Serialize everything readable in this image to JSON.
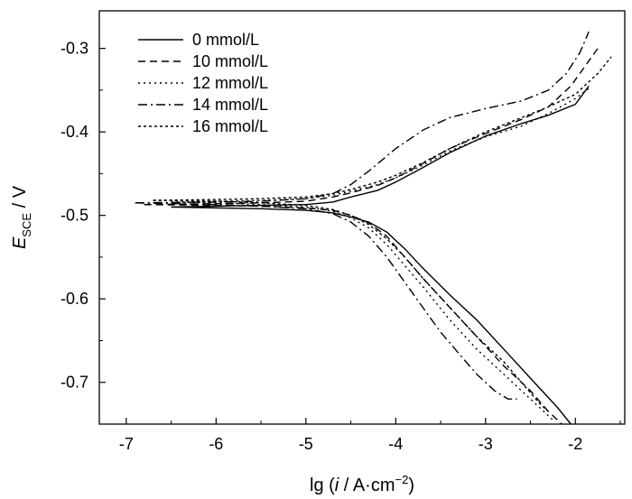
{
  "chart_data": {
    "type": "line",
    "title": "",
    "xlabel": {
      "prefix": "lg (",
      "italic": "i",
      "middle": " / A·cm",
      "sup": "−2",
      "suffix": ")"
    },
    "ylabel": {
      "main": "E",
      "sub": "SCE",
      "suffix": " / V"
    },
    "xlim": [
      -7.3,
      -1.45
    ],
    "ylim": [
      -0.75,
      -0.255
    ],
    "xticks": [
      -7,
      -6,
      -5,
      -4,
      -3,
      -2
    ],
    "xtick_labels": [
      "-7",
      "-6",
      "-5",
      "-4",
      "-3",
      "-2"
    ],
    "yticks": [
      -0.3,
      -0.4,
      -0.5,
      -0.6,
      -0.7
    ],
    "ytick_labels": [
      "-0.3",
      "-0.4",
      "-0.5",
      "-0.6",
      "-0.7"
    ],
    "grid": false,
    "legend_position": "top-left",
    "series": [
      {
        "name": "0 mmol/L",
        "dash": "solid",
        "anodic": [
          [
            -6.5,
            -0.49
          ],
          [
            -6.0,
            -0.489
          ],
          [
            -5.5,
            -0.488
          ],
          [
            -5.0,
            -0.487
          ],
          [
            -4.7,
            -0.484
          ],
          [
            -4.5,
            -0.478
          ],
          [
            -4.2,
            -0.47
          ],
          [
            -4.0,
            -0.46
          ],
          [
            -3.7,
            -0.443
          ],
          [
            -3.4,
            -0.425
          ],
          [
            -3.0,
            -0.405
          ],
          [
            -2.6,
            -0.39
          ],
          [
            -2.3,
            -0.38
          ],
          [
            -2.0,
            -0.367
          ],
          [
            -1.85,
            -0.345
          ]
        ],
        "cathodic": [
          [
            -6.5,
            -0.49
          ],
          [
            -6.0,
            -0.491
          ],
          [
            -5.5,
            -0.492
          ],
          [
            -5.0,
            -0.494
          ],
          [
            -4.7,
            -0.497
          ],
          [
            -4.5,
            -0.502
          ],
          [
            -4.3,
            -0.508
          ],
          [
            -4.1,
            -0.52
          ],
          [
            -3.9,
            -0.54
          ],
          [
            -3.7,
            -0.563
          ],
          [
            -3.4,
            -0.595
          ],
          [
            -3.1,
            -0.625
          ],
          [
            -2.8,
            -0.66
          ],
          [
            -2.5,
            -0.695
          ],
          [
            -2.2,
            -0.73
          ],
          [
            -2.05,
            -0.75
          ]
        ]
      },
      {
        "name": "10 mmol/L",
        "dash": "8,5",
        "anodic": [
          [
            -6.8,
            -0.487
          ],
          [
            -6.0,
            -0.486
          ],
          [
            -5.5,
            -0.485
          ],
          [
            -5.0,
            -0.483
          ],
          [
            -4.7,
            -0.478
          ],
          [
            -4.5,
            -0.473
          ],
          [
            -4.2,
            -0.464
          ],
          [
            -4.0,
            -0.455
          ],
          [
            -3.7,
            -0.438
          ],
          [
            -3.4,
            -0.42
          ],
          [
            -3.0,
            -0.402
          ],
          [
            -2.6,
            -0.385
          ],
          [
            -2.3,
            -0.37
          ],
          [
            -2.05,
            -0.345
          ],
          [
            -1.85,
            -0.315
          ],
          [
            -1.75,
            -0.3
          ]
        ],
        "cathodic": [
          [
            -6.8,
            -0.487
          ],
          [
            -6.0,
            -0.488
          ],
          [
            -5.5,
            -0.489
          ],
          [
            -5.0,
            -0.491
          ],
          [
            -4.7,
            -0.494
          ],
          [
            -4.5,
            -0.5
          ],
          [
            -4.3,
            -0.509
          ],
          [
            -4.1,
            -0.525
          ],
          [
            -3.9,
            -0.55
          ],
          [
            -3.7,
            -0.575
          ],
          [
            -3.4,
            -0.61
          ],
          [
            -3.1,
            -0.645
          ],
          [
            -2.8,
            -0.68
          ],
          [
            -2.5,
            -0.71
          ],
          [
            -2.3,
            -0.735
          ],
          [
            -2.15,
            -0.75
          ]
        ]
      },
      {
        "name": "12 mmol/L",
        "dash": "2,4",
        "anodic": [
          [
            -6.5,
            -0.484
          ],
          [
            -6.0,
            -0.483
          ],
          [
            -5.5,
            -0.482
          ],
          [
            -5.0,
            -0.48
          ],
          [
            -4.7,
            -0.476
          ],
          [
            -4.5,
            -0.471
          ],
          [
            -4.2,
            -0.463
          ],
          [
            -4.0,
            -0.455
          ],
          [
            -3.7,
            -0.44
          ],
          [
            -3.4,
            -0.423
          ],
          [
            -3.0,
            -0.406
          ],
          [
            -2.6,
            -0.393
          ],
          [
            -2.3,
            -0.378
          ],
          [
            -2.0,
            -0.36
          ],
          [
            -1.85,
            -0.348
          ]
        ],
        "cathodic": [
          [
            -6.5,
            -0.484
          ],
          [
            -6.0,
            -0.485
          ],
          [
            -5.5,
            -0.487
          ],
          [
            -5.0,
            -0.49
          ],
          [
            -4.7,
            -0.495
          ],
          [
            -4.5,
            -0.503
          ],
          [
            -4.3,
            -0.515
          ],
          [
            -4.1,
            -0.535
          ],
          [
            -3.9,
            -0.56
          ],
          [
            -3.7,
            -0.585
          ],
          [
            -3.4,
            -0.625
          ],
          [
            -3.1,
            -0.66
          ],
          [
            -2.8,
            -0.69
          ],
          [
            -2.6,
            -0.71
          ],
          [
            -2.4,
            -0.73
          ],
          [
            -2.25,
            -0.745
          ]
        ]
      },
      {
        "name": "14 mmol/L",
        "dash": "10,4,2,4",
        "anodic": [
          [
            -6.9,
            -0.485
          ],
          [
            -6.0,
            -0.484
          ],
          [
            -5.5,
            -0.483
          ],
          [
            -5.0,
            -0.48
          ],
          [
            -4.7,
            -0.474
          ],
          [
            -4.5,
            -0.463
          ],
          [
            -4.3,
            -0.447
          ],
          [
            -4.0,
            -0.42
          ],
          [
            -3.7,
            -0.398
          ],
          [
            -3.4,
            -0.383
          ],
          [
            -3.0,
            -0.372
          ],
          [
            -2.6,
            -0.363
          ],
          [
            -2.3,
            -0.35
          ],
          [
            -2.1,
            -0.33
          ],
          [
            -1.95,
            -0.305
          ],
          [
            -1.85,
            -0.28
          ]
        ],
        "cathodic": [
          [
            -6.9,
            -0.485
          ],
          [
            -6.0,
            -0.487
          ],
          [
            -5.5,
            -0.489
          ],
          [
            -5.0,
            -0.492
          ],
          [
            -4.7,
            -0.498
          ],
          [
            -4.5,
            -0.508
          ],
          [
            -4.3,
            -0.525
          ],
          [
            -4.1,
            -0.55
          ],
          [
            -3.9,
            -0.58
          ],
          [
            -3.7,
            -0.61
          ],
          [
            -3.5,
            -0.64
          ],
          [
            -3.3,
            -0.665
          ],
          [
            -3.1,
            -0.69
          ],
          [
            -2.9,
            -0.71
          ],
          [
            -2.75,
            -0.72
          ],
          [
            -2.65,
            -0.72
          ]
        ]
      },
      {
        "name": "16 mmol/L",
        "dash": "3,3",
        "anodic": [
          [
            -6.7,
            -0.482
          ],
          [
            -6.0,
            -0.481
          ],
          [
            -5.5,
            -0.48
          ],
          [
            -5.0,
            -0.478
          ],
          [
            -4.7,
            -0.474
          ],
          [
            -4.5,
            -0.469
          ],
          [
            -4.2,
            -0.46
          ],
          [
            -4.0,
            -0.452
          ],
          [
            -3.7,
            -0.437
          ],
          [
            -3.4,
            -0.42
          ],
          [
            -3.0,
            -0.4
          ],
          [
            -2.6,
            -0.383
          ],
          [
            -2.3,
            -0.37
          ],
          [
            -2.0,
            -0.355
          ],
          [
            -1.75,
            -0.33
          ],
          [
            -1.6,
            -0.31
          ]
        ],
        "cathodic": [
          [
            -6.7,
            -0.482
          ],
          [
            -6.0,
            -0.483
          ],
          [
            -5.5,
            -0.485
          ],
          [
            -5.0,
            -0.488
          ],
          [
            -4.7,
            -0.493
          ],
          [
            -4.5,
            -0.5
          ],
          [
            -4.3,
            -0.511
          ],
          [
            -4.1,
            -0.528
          ],
          [
            -3.9,
            -0.55
          ],
          [
            -3.7,
            -0.575
          ],
          [
            -3.4,
            -0.61
          ],
          [
            -3.1,
            -0.645
          ],
          [
            -2.8,
            -0.675
          ],
          [
            -2.6,
            -0.7
          ],
          [
            -2.4,
            -0.725
          ],
          [
            -2.3,
            -0.735
          ]
        ]
      }
    ]
  }
}
